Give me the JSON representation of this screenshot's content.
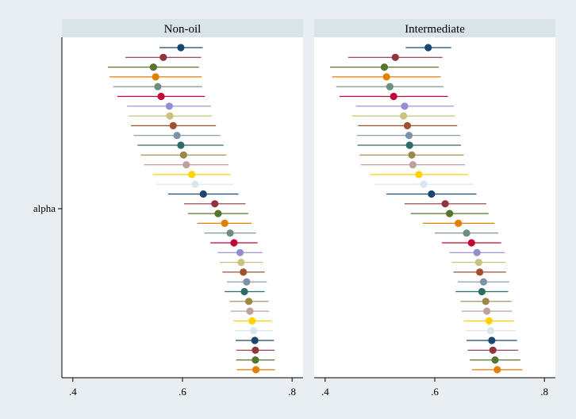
{
  "chart_data": {
    "type": "scatter",
    "subtype": "coefficient-plot",
    "title": "",
    "ylabel_category": "alpha",
    "xlim": [
      0.38,
      0.82
    ],
    "xticks": [
      0.4,
      0.6,
      0.8
    ],
    "xtick_labels": [
      ".4",
      ".6",
      ".8"
    ],
    "series_colors": [
      "#1a476f",
      "#90353b",
      "#55752f",
      "#e37e00",
      "#6e8e84",
      "#c10534",
      "#938dd2",
      "#cac27e",
      "#a0522d",
      "#7b92a8",
      "#2d6d66",
      "#9c8847",
      "#bfa19c",
      "#ffd200",
      "#d9e6eb"
    ],
    "panels": [
      {
        "title": "Non-oil",
        "estimates": [
          {
            "est": 0.597,
            "lo": 0.558,
            "hi": 0.637
          },
          {
            "est": 0.565,
            "lo": 0.496,
            "hi": 0.634
          },
          {
            "est": 0.547,
            "lo": 0.464,
            "hi": 0.63
          },
          {
            "est": 0.551,
            "lo": 0.467,
            "hi": 0.635
          },
          {
            "est": 0.555,
            "lo": 0.474,
            "hi": 0.636
          },
          {
            "est": 0.561,
            "lo": 0.481,
            "hi": 0.641
          },
          {
            "est": 0.576,
            "lo": 0.499,
            "hi": 0.652
          },
          {
            "est": 0.577,
            "lo": 0.501,
            "hi": 0.654
          },
          {
            "est": 0.583,
            "lo": 0.506,
            "hi": 0.661
          },
          {
            "est": 0.59,
            "lo": 0.511,
            "hi": 0.669
          },
          {
            "est": 0.597,
            "lo": 0.518,
            "hi": 0.675
          },
          {
            "est": 0.602,
            "lo": 0.524,
            "hi": 0.68
          },
          {
            "est": 0.607,
            "lo": 0.53,
            "hi": 0.684
          },
          {
            "est": 0.617,
            "lo": 0.546,
            "hi": 0.688
          },
          {
            "est": 0.623,
            "lo": 0.552,
            "hi": 0.693
          },
          {
            "est": 0.638,
            "lo": 0.574,
            "hi": 0.702
          },
          {
            "est": 0.659,
            "lo": 0.603,
            "hi": 0.715
          },
          {
            "est": 0.665,
            "lo": 0.61,
            "hi": 0.72
          },
          {
            "est": 0.677,
            "lo": 0.627,
            "hi": 0.726
          },
          {
            "est": 0.687,
            "lo": 0.64,
            "hi": 0.734
          },
          {
            "est": 0.694,
            "lo": 0.651,
            "hi": 0.737
          },
          {
            "est": 0.705,
            "lo": 0.664,
            "hi": 0.746
          },
          {
            "est": 0.707,
            "lo": 0.668,
            "hi": 0.747
          },
          {
            "est": 0.711,
            "lo": 0.673,
            "hi": 0.75
          },
          {
            "est": 0.717,
            "lo": 0.681,
            "hi": 0.754
          },
          {
            "est": 0.713,
            "lo": 0.677,
            "hi": 0.75
          },
          {
            "est": 0.721,
            "lo": 0.686,
            "hi": 0.757
          },
          {
            "est": 0.723,
            "lo": 0.688,
            "hi": 0.758
          },
          {
            "est": 0.727,
            "lo": 0.693,
            "hi": 0.762
          },
          {
            "est": 0.73,
            "lo": 0.695,
            "hi": 0.765
          },
          {
            "est": 0.732,
            "lo": 0.697,
            "hi": 0.767
          },
          {
            "est": 0.733,
            "lo": 0.698,
            "hi": 0.768
          },
          {
            "est": 0.733,
            "lo": 0.698,
            "hi": 0.768
          },
          {
            "est": 0.734,
            "lo": 0.699,
            "hi": 0.769
          }
        ]
      },
      {
        "title": "Intermediate",
        "estimates": [
          {
            "est": 0.588,
            "lo": 0.547,
            "hi": 0.63
          },
          {
            "est": 0.528,
            "lo": 0.442,
            "hi": 0.614
          },
          {
            "est": 0.508,
            "lo": 0.409,
            "hi": 0.607
          },
          {
            "est": 0.512,
            "lo": 0.413,
            "hi": 0.611
          },
          {
            "est": 0.518,
            "lo": 0.42,
            "hi": 0.616
          },
          {
            "est": 0.525,
            "lo": 0.426,
            "hi": 0.624
          },
          {
            "est": 0.545,
            "lo": 0.456,
            "hi": 0.635
          },
          {
            "est": 0.543,
            "lo": 0.449,
            "hi": 0.637
          },
          {
            "est": 0.55,
            "lo": 0.46,
            "hi": 0.641
          },
          {
            "est": 0.553,
            "lo": 0.458,
            "hi": 0.647
          },
          {
            "est": 0.554,
            "lo": 0.459,
            "hi": 0.648
          },
          {
            "est": 0.558,
            "lo": 0.463,
            "hi": 0.653
          },
          {
            "est": 0.56,
            "lo": 0.465,
            "hi": 0.655
          },
          {
            "est": 0.571,
            "lo": 0.482,
            "hi": 0.661
          },
          {
            "est": 0.58,
            "lo": 0.489,
            "hi": 0.671
          },
          {
            "est": 0.594,
            "lo": 0.512,
            "hi": 0.676
          },
          {
            "est": 0.619,
            "lo": 0.545,
            "hi": 0.694
          },
          {
            "est": 0.627,
            "lo": 0.556,
            "hi": 0.698
          },
          {
            "est": 0.643,
            "lo": 0.578,
            "hi": 0.709
          },
          {
            "est": 0.658,
            "lo": 0.6,
            "hi": 0.716
          },
          {
            "est": 0.667,
            "lo": 0.613,
            "hi": 0.721
          },
          {
            "est": 0.677,
            "lo": 0.627,
            "hi": 0.728
          },
          {
            "est": 0.68,
            "lo": 0.631,
            "hi": 0.729
          },
          {
            "est": 0.682,
            "lo": 0.634,
            "hi": 0.73
          },
          {
            "est": 0.689,
            "lo": 0.642,
            "hi": 0.736
          },
          {
            "est": 0.686,
            "lo": 0.638,
            "hi": 0.734
          },
          {
            "est": 0.693,
            "lo": 0.647,
            "hi": 0.74
          },
          {
            "est": 0.695,
            "lo": 0.649,
            "hi": 0.741
          },
          {
            "est": 0.699,
            "lo": 0.653,
            "hi": 0.745
          },
          {
            "est": 0.702,
            "lo": 0.656,
            "hi": 0.748
          },
          {
            "est": 0.704,
            "lo": 0.658,
            "hi": 0.75
          },
          {
            "est": 0.706,
            "lo": 0.66,
            "hi": 0.752
          },
          {
            "est": 0.71,
            "lo": 0.664,
            "hi": 0.756
          },
          {
            "est": 0.714,
            "lo": 0.668,
            "hi": 0.76
          }
        ]
      }
    ]
  }
}
